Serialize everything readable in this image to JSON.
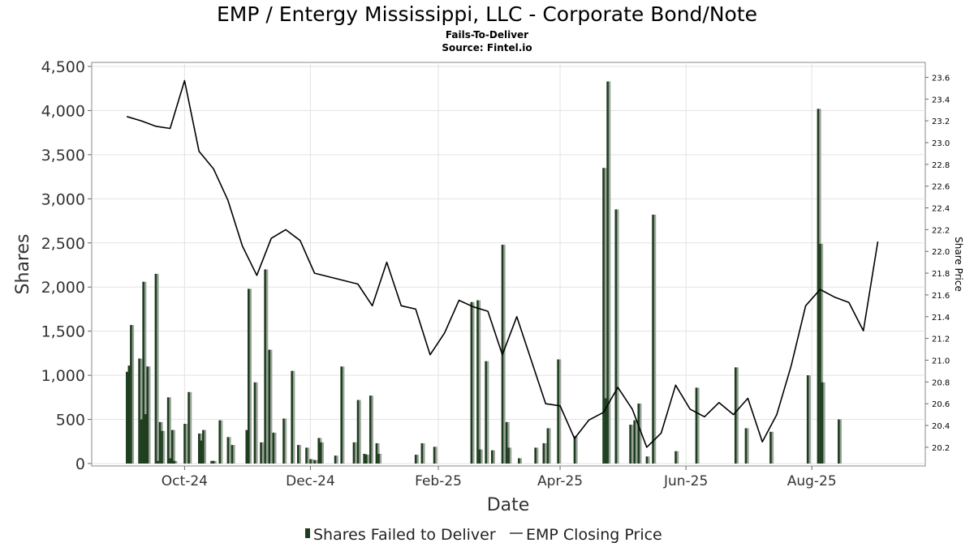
{
  "chart_data": {
    "type": "bar",
    "title": "EMP / Entergy Mississippi, LLC - Corporate Bond/Note",
    "subtitle": [
      "Fails-To-Deliver",
      "Source: Fintel.io"
    ],
    "xlabel": "Date",
    "ylabel": "Shares",
    "y2label": "Share Price",
    "x_range": [
      "2024-08-17",
      "2025-09-25"
    ],
    "xticks": [
      {
        "date": "2024-10-01",
        "label": "Oct-24"
      },
      {
        "date": "2024-12-01",
        "label": "Dec-24"
      },
      {
        "date": "2025-02-01",
        "label": "Feb-25"
      },
      {
        "date": "2025-04-01",
        "label": "Apr-25"
      },
      {
        "date": "2025-06-01",
        "label": "Jun-25"
      },
      {
        "date": "2025-08-01",
        "label": "Aug-25"
      }
    ],
    "ylim": [
      0,
      4500
    ],
    "yticks": [
      0,
      500,
      1000,
      1500,
      2000,
      2500,
      3000,
      3500,
      4000,
      4500
    ],
    "ytick_labels": [
      "0",
      "500",
      "1,000",
      "1,500",
      "2,000",
      "2,500",
      "3,000",
      "3,500",
      "4,000",
      "4,500"
    ],
    "y2lim": [
      20.05,
      23.7
    ],
    "y2ticks": [
      20.2,
      20.4,
      20.6,
      20.8,
      21.0,
      21.2,
      21.4,
      21.6,
      21.8,
      22.0,
      22.2,
      22.4,
      22.6,
      22.8,
      23.0,
      23.2,
      23.4,
      23.6
    ],
    "y2tick_labels": [
      "20.2",
      "20.4",
      "20.6",
      "20.8",
      "21.0",
      "21.2",
      "21.4",
      "21.6",
      "21.8",
      "22.0",
      "22.2",
      "22.4",
      "22.6",
      "22.8",
      "23.0",
      "23.2",
      "23.4",
      "23.6"
    ],
    "grid": true,
    "legend_position": "bottom",
    "bar_color": "#1e3d1e",
    "line_color": "#000000",
    "series": [
      {
        "name": "Shares Failed to Deliver",
        "type": "bar",
        "points": [
          [
            "2024-09-03",
            1040
          ],
          [
            "2024-09-04",
            1110
          ],
          [
            "2024-09-05",
            1570
          ],
          [
            "2024-09-09",
            1190
          ],
          [
            "2024-09-10",
            500
          ],
          [
            "2024-09-11",
            2060
          ],
          [
            "2024-09-12",
            560
          ],
          [
            "2024-09-13",
            1100
          ],
          [
            "2024-09-17",
            2150
          ],
          [
            "2024-09-18",
            30
          ],
          [
            "2024-09-19",
            470
          ],
          [
            "2024-09-20",
            370
          ],
          [
            "2024-09-23",
            750
          ],
          [
            "2024-09-24",
            60
          ],
          [
            "2024-09-25",
            380
          ],
          [
            "2024-09-26",
            30
          ],
          [
            "2024-10-01",
            450
          ],
          [
            "2024-10-03",
            810
          ],
          [
            "2024-10-08",
            340
          ],
          [
            "2024-10-09",
            260
          ],
          [
            "2024-10-10",
            380
          ],
          [
            "2024-10-14",
            30
          ],
          [
            "2024-10-15",
            30
          ],
          [
            "2024-10-18",
            490
          ],
          [
            "2024-10-22",
            300
          ],
          [
            "2024-10-24",
            210
          ],
          [
            "2024-10-31",
            380
          ],
          [
            "2024-11-01",
            1980
          ],
          [
            "2024-11-04",
            920
          ],
          [
            "2024-11-07",
            240
          ],
          [
            "2024-11-09",
            2200
          ],
          [
            "2024-11-11",
            1290
          ],
          [
            "2024-11-13",
            350
          ],
          [
            "2024-11-18",
            510
          ],
          [
            "2024-11-22",
            1050
          ],
          [
            "2024-11-25",
            210
          ],
          [
            "2024-11-29",
            180
          ],
          [
            "2024-12-01",
            50
          ],
          [
            "2024-12-03",
            40
          ],
          [
            "2024-12-05",
            290
          ],
          [
            "2024-12-06",
            240
          ],
          [
            "2024-12-13",
            90
          ],
          [
            "2024-12-16",
            1100
          ],
          [
            "2024-12-22",
            240
          ],
          [
            "2024-12-24",
            720
          ],
          [
            "2024-12-27",
            110
          ],
          [
            "2024-12-28",
            100
          ],
          [
            "2024-12-30",
            770
          ],
          [
            "2025-01-02",
            230
          ],
          [
            "2025-01-03",
            110
          ],
          [
            "2025-01-21",
            100
          ],
          [
            "2025-01-24",
            230
          ],
          [
            "2025-01-30",
            190
          ],
          [
            "2025-02-17",
            1830
          ],
          [
            "2025-02-20",
            1850
          ],
          [
            "2025-02-21",
            160
          ],
          [
            "2025-02-24",
            1160
          ],
          [
            "2025-02-27",
            150
          ],
          [
            "2025-03-04",
            2480
          ],
          [
            "2025-03-06",
            470
          ],
          [
            "2025-03-07",
            180
          ],
          [
            "2025-03-12",
            60
          ],
          [
            "2025-03-20",
            180
          ],
          [
            "2025-03-24",
            230
          ],
          [
            "2025-03-26",
            400
          ],
          [
            "2025-03-31",
            1180
          ],
          [
            "2025-04-08",
            310
          ],
          [
            "2025-04-22",
            3350
          ],
          [
            "2025-04-23",
            740
          ],
          [
            "2025-04-24",
            4330
          ],
          [
            "2025-04-28",
            2880
          ],
          [
            "2025-05-05",
            440
          ],
          [
            "2025-05-07",
            490
          ],
          [
            "2025-05-09",
            680
          ],
          [
            "2025-05-13",
            80
          ],
          [
            "2025-05-16",
            2820
          ],
          [
            "2025-05-27",
            140
          ],
          [
            "2025-06-06",
            860
          ],
          [
            "2025-06-25",
            1090
          ],
          [
            "2025-06-30",
            400
          ],
          [
            "2025-07-12",
            360
          ],
          [
            "2025-07-30",
            1000
          ],
          [
            "2025-08-04",
            4020
          ],
          [
            "2025-08-05",
            2490
          ],
          [
            "2025-08-06",
            920
          ],
          [
            "2025-08-14",
            500
          ]
        ]
      },
      {
        "name": "EMP Closing Price",
        "type": "line",
        "points": [
          [
            "2024-09-03",
            23.24
          ],
          [
            "2024-09-10",
            23.2
          ],
          [
            "2024-09-17",
            23.15
          ],
          [
            "2024-09-24",
            23.13
          ],
          [
            "2024-10-01",
            23.57
          ],
          [
            "2024-10-08",
            22.92
          ],
          [
            "2024-10-15",
            22.76
          ],
          [
            "2024-10-22",
            22.47
          ],
          [
            "2024-10-29",
            22.05
          ],
          [
            "2024-11-05",
            21.78
          ],
          [
            "2024-11-12",
            22.12
          ],
          [
            "2024-11-19",
            22.2
          ],
          [
            "2024-11-26",
            22.1
          ],
          [
            "2024-12-03",
            21.8
          ],
          [
            "2024-12-24",
            21.7
          ],
          [
            "2024-12-31",
            21.5
          ],
          [
            "2025-01-07",
            21.9
          ],
          [
            "2025-01-14",
            21.5
          ],
          [
            "2025-01-21",
            21.47
          ],
          [
            "2025-01-28",
            21.05
          ],
          [
            "2025-02-04",
            21.25
          ],
          [
            "2025-02-11",
            21.55
          ],
          [
            "2025-02-18",
            21.49
          ],
          [
            "2025-02-25",
            21.45
          ],
          [
            "2025-03-04",
            21.05
          ],
          [
            "2025-03-11",
            21.4
          ],
          [
            "2025-03-18",
            21.0
          ],
          [
            "2025-03-25",
            20.6
          ],
          [
            "2025-04-01",
            20.58
          ],
          [
            "2025-04-08",
            20.28
          ],
          [
            "2025-04-15",
            20.45
          ],
          [
            "2025-04-22",
            20.52
          ],
          [
            "2025-04-29",
            20.75
          ],
          [
            "2025-05-06",
            20.55
          ],
          [
            "2025-05-13",
            20.2
          ],
          [
            "2025-05-20",
            20.33
          ],
          [
            "2025-05-27",
            20.77
          ],
          [
            "2025-06-03",
            20.55
          ],
          [
            "2025-06-10",
            20.48
          ],
          [
            "2025-06-17",
            20.61
          ],
          [
            "2025-06-24",
            20.5
          ],
          [
            "2025-07-01",
            20.65
          ],
          [
            "2025-07-08",
            20.25
          ],
          [
            "2025-07-15",
            20.5
          ],
          [
            "2025-07-22",
            20.95
          ],
          [
            "2025-07-29",
            21.5
          ],
          [
            "2025-08-05",
            21.65
          ],
          [
            "2025-08-12",
            21.58
          ],
          [
            "2025-08-19",
            21.53
          ],
          [
            "2025-08-26",
            21.27
          ],
          [
            "2025-09-02",
            22.09
          ]
        ]
      }
    ]
  }
}
